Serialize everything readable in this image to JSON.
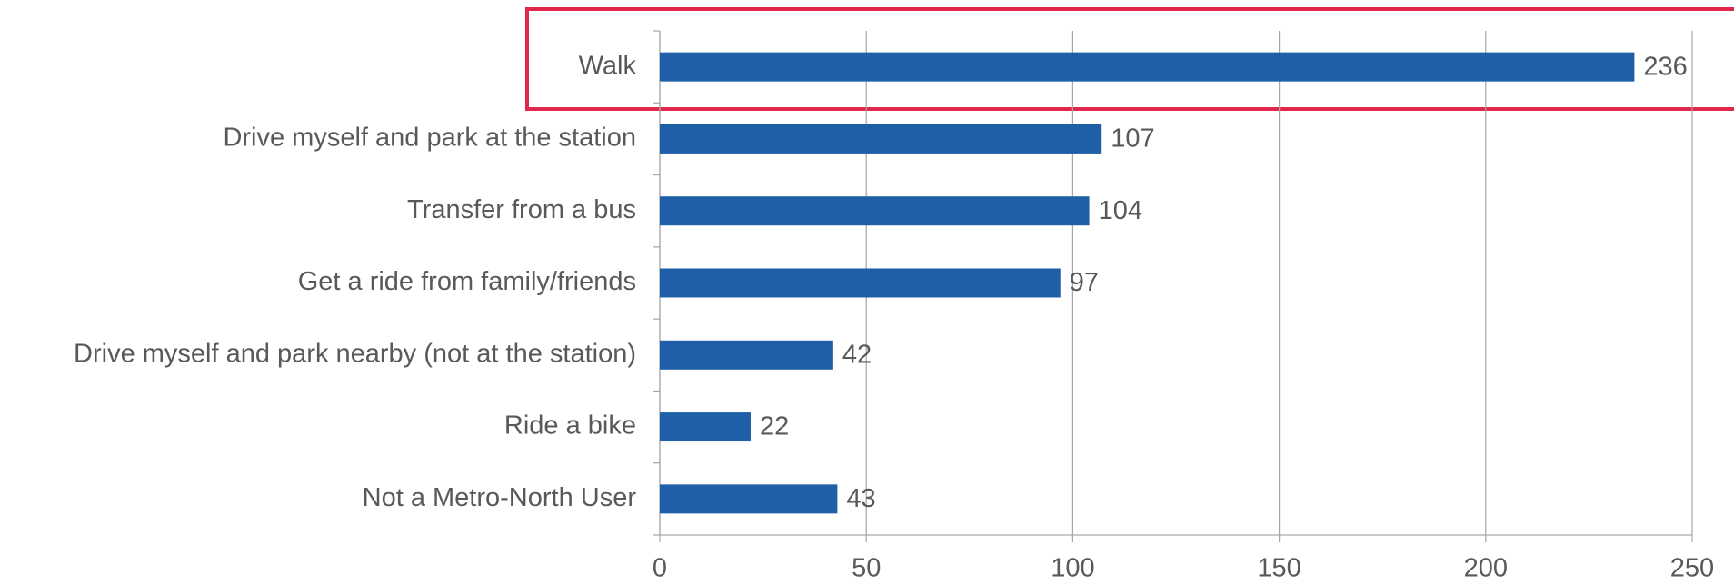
{
  "chart_data": {
    "type": "hbar",
    "categories": [
      "Walk",
      "Drive myself and park at the station",
      "Transfer from a bus",
      "Get a ride from family/friends",
      "Drive myself and park nearby (not at the station)",
      "Ride a bike",
      "Not a Metro-North User"
    ],
    "values": [
      236,
      107,
      104,
      97,
      42,
      22,
      43
    ],
    "color": "#1f5fa8",
    "xlim": [
      0,
      250
    ],
    "xticks": [
      0,
      50,
      100,
      150,
      200,
      250
    ],
    "grid": true
  }
}
